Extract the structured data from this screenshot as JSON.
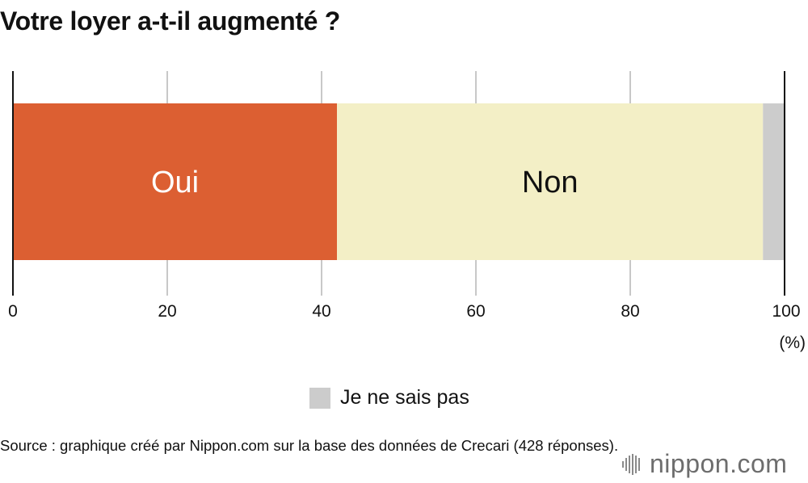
{
  "chart_data": {
    "type": "bar",
    "orientation": "horizontal-stacked",
    "title": "Votre loyer a-t-il augmenté ?",
    "categories": [
      ""
    ],
    "series": [
      {
        "name": "Oui",
        "values": [
          42
        ],
        "color": "#dc5f32",
        "label_color": "#ffffff"
      },
      {
        "name": "Non",
        "values": [
          55.2
        ],
        "color": "#f3efc6",
        "label_color": "#111111"
      },
      {
        "name": "Je ne sais pas",
        "values": [
          2.8
        ],
        "color": "#cccccc"
      }
    ],
    "xlim": [
      0,
      100
    ],
    "xticks": [
      "0",
      "20",
      "40",
      "60",
      "80",
      "100"
    ],
    "unit_label": "(%)",
    "grid": true,
    "legend": {
      "placement": "bottom-center",
      "label": "Je ne sais pas",
      "color": "#cccccc"
    }
  },
  "source": "Source : graphique créé par Nippon.com sur la base des données de Crecari (428 réponses).",
  "logo": {
    "word": "nippon",
    "suffix": ".com",
    "icon": "nippon-wave-icon",
    "color": "#6d6d6d",
    "accent": "#dc5f32"
  }
}
